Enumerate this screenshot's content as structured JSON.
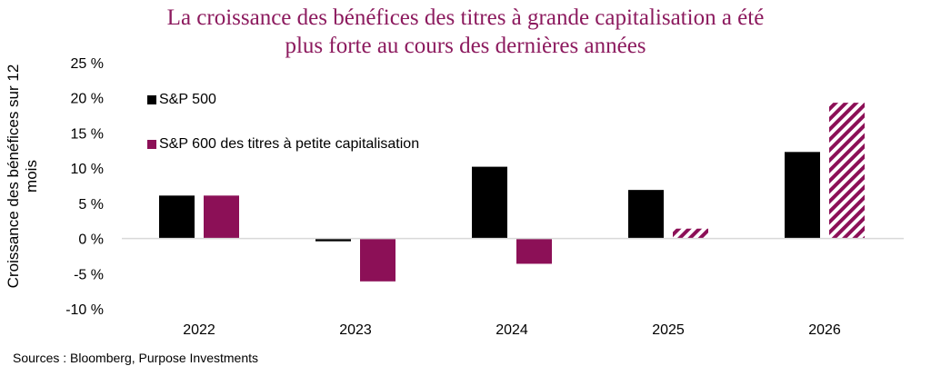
{
  "chart_data": {
    "type": "bar",
    "title": "La croissance des bénéfices des titres à grande capitalisation a été plus forte au cours des dernières années",
    "title_lines": [
      "La croissance des bénéfices des titres à grande capitalisation a été",
      "plus forte au cours des dernières années"
    ],
    "xlabel": "",
    "ylabel": "Croissance des bénéfices sur 12 mois",
    "categories": [
      "2022",
      "2023",
      "2024",
      "2025",
      "2026"
    ],
    "series": [
      {
        "name": "S&P 500",
        "color": "#000000",
        "values": [
          6.1,
          -0.4,
          10.2,
          6.9,
          12.3
        ],
        "estimated": [
          false,
          false,
          false,
          false,
          false
        ]
      },
      {
        "name": "S&P 600 des titres à petite capitalisation",
        "color": "#8C1057",
        "values": [
          6.1,
          -6.1,
          -3.6,
          1.4,
          19.3
        ],
        "estimated": [
          false,
          false,
          false,
          true,
          true
        ]
      }
    ],
    "ylim": [
      -10,
      25
    ],
    "yticks": [
      25,
      20,
      15,
      10,
      5,
      0,
      -5,
      -10
    ],
    "ytick_labels": [
      "25 %",
      "20 %",
      "15 %",
      "10 %",
      "5 %",
      "0 %",
      "-5 %",
      "-10 %"
    ],
    "grid": false,
    "legend_position": "top-left",
    "source": "Sources : Bloomberg, Purpose Investments"
  }
}
